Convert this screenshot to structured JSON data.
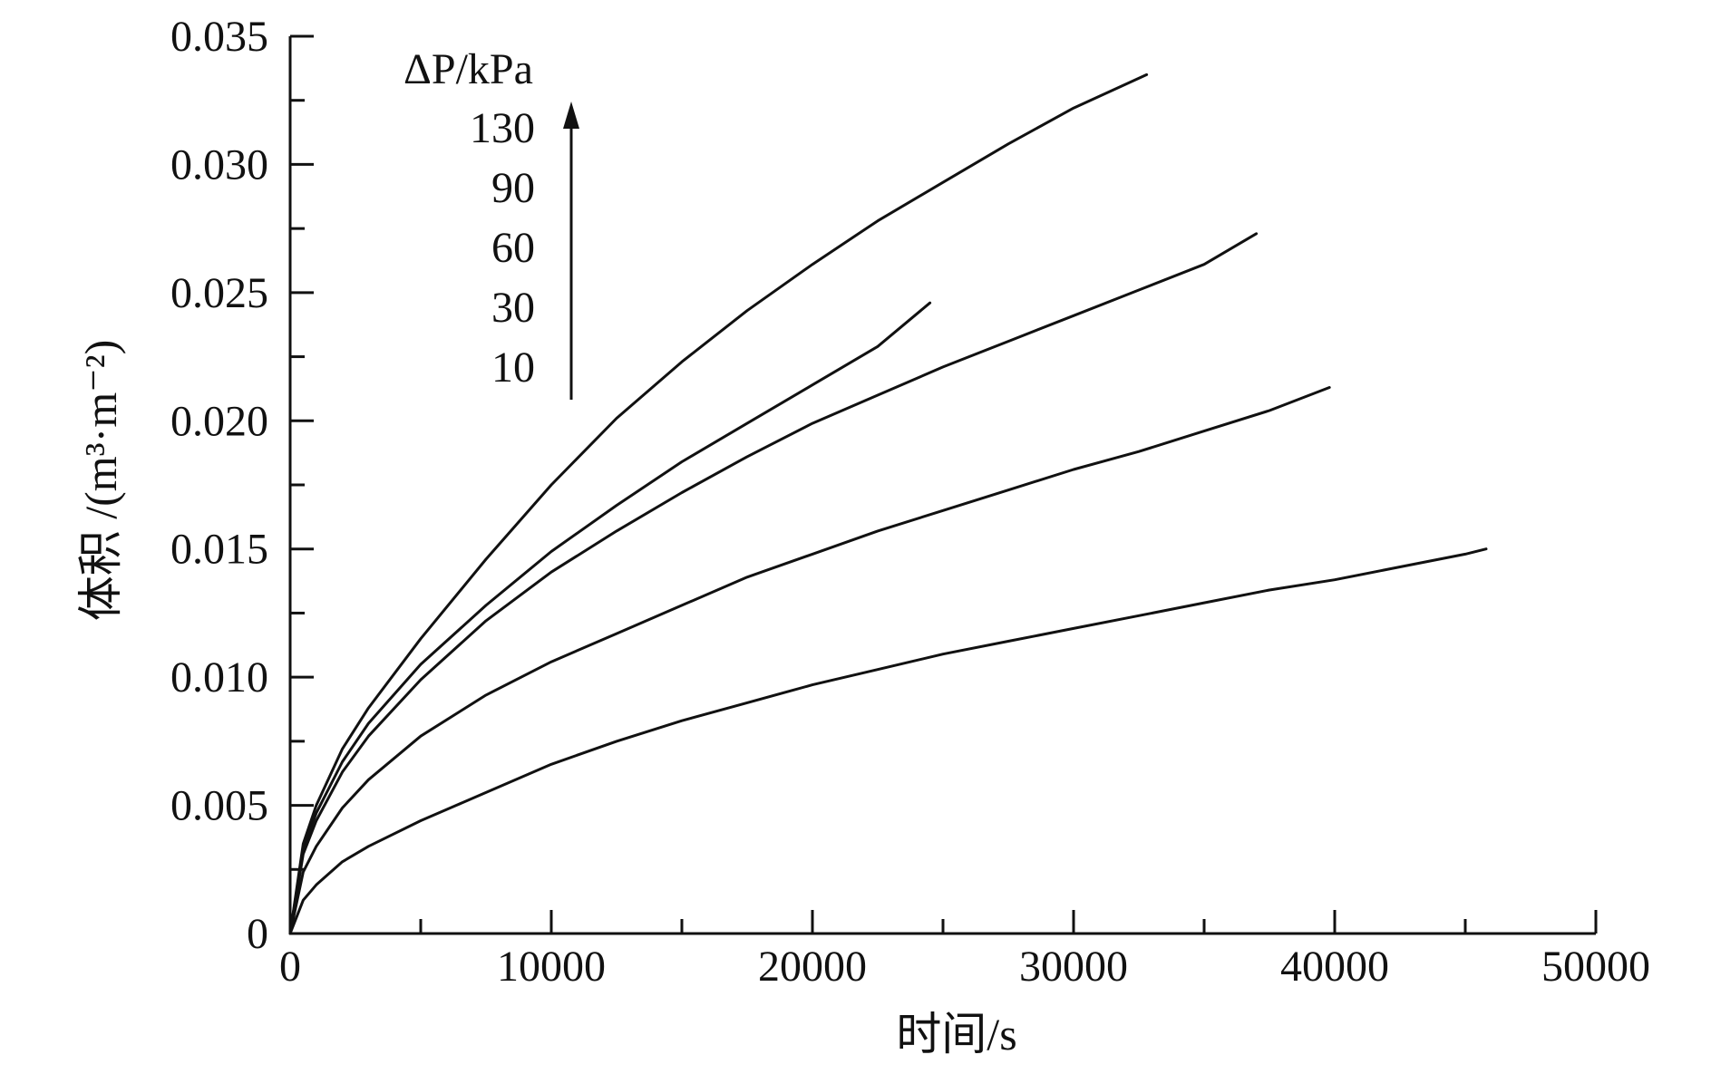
{
  "colors": {
    "background": "#ffffff",
    "ink": "#111111"
  },
  "chart_data": {
    "type": "line",
    "title": "",
    "xlabel": "时间/s",
    "ylabel": "体积 /(m³·m⁻²)",
    "xlim": [
      0,
      50000
    ],
    "ylim": [
      0,
      0.035
    ],
    "x_ticks": [
      0,
      10000,
      20000,
      30000,
      40000,
      50000
    ],
    "x_tick_labels": [
      "0",
      "10000",
      "20000",
      "30000",
      "40000",
      "50000"
    ],
    "y_ticks": [
      0,
      0.005,
      0.01,
      0.015,
      0.02,
      0.025,
      0.03,
      0.035
    ],
    "y_tick_labels": [
      "0",
      "0.005",
      "0.010",
      "0.015",
      "0.020",
      "0.025",
      "0.030",
      "0.035"
    ],
    "grid": false,
    "legend": {
      "title": "ΔP/kPa",
      "entries": [
        "130",
        "90",
        "60",
        "30",
        "10"
      ],
      "placement": "top-left",
      "arrow_direction": "up"
    },
    "series": [
      {
        "name": "10",
        "x": [
          0,
          500,
          1000,
          2000,
          3000,
          5000,
          7500,
          10000,
          12500,
          15000,
          17500,
          20000,
          22500,
          25000,
          27500,
          30000,
          32500,
          35000,
          37500,
          40000,
          42500,
          45000,
          45800
        ],
        "y": [
          0,
          0.0013,
          0.0019,
          0.0028,
          0.0034,
          0.0044,
          0.0055,
          0.0066,
          0.0075,
          0.0083,
          0.009,
          0.0097,
          0.0103,
          0.0109,
          0.0114,
          0.0119,
          0.0124,
          0.0129,
          0.0134,
          0.0138,
          0.0143,
          0.0148,
          0.015
        ]
      },
      {
        "name": "30",
        "x": [
          0,
          500,
          1000,
          2000,
          3000,
          5000,
          7500,
          10000,
          12500,
          15000,
          17500,
          20000,
          22500,
          25000,
          27500,
          30000,
          32500,
          35000,
          37500,
          39800
        ],
        "y": [
          0,
          0.0024,
          0.0034,
          0.0049,
          0.006,
          0.0077,
          0.0093,
          0.0106,
          0.0117,
          0.0128,
          0.0139,
          0.0148,
          0.0157,
          0.0165,
          0.0173,
          0.0181,
          0.0188,
          0.0196,
          0.0204,
          0.0213
        ]
      },
      {
        "name": "60",
        "x": [
          0,
          500,
          1000,
          2000,
          3000,
          5000,
          7500,
          10000,
          12500,
          15000,
          17500,
          20000,
          22500,
          25000,
          27500,
          30000,
          32500,
          35000,
          37000
        ],
        "y": [
          0,
          0.0031,
          0.0044,
          0.0063,
          0.0077,
          0.0099,
          0.0122,
          0.0141,
          0.0157,
          0.0172,
          0.0186,
          0.0199,
          0.021,
          0.0221,
          0.0231,
          0.0241,
          0.0251,
          0.0261,
          0.0273
        ]
      },
      {
        "name": "90",
        "x": [
          0,
          500,
          1000,
          2000,
          3000,
          5000,
          7500,
          10000,
          12500,
          15000,
          17500,
          20000,
          22500,
          24500
        ],
        "y": [
          0,
          0.0033,
          0.0047,
          0.0067,
          0.0082,
          0.0105,
          0.0128,
          0.0149,
          0.0167,
          0.0184,
          0.0199,
          0.0214,
          0.0229,
          0.0246
        ]
      },
      {
        "name": "130",
        "x": [
          0,
          500,
          1000,
          2000,
          3000,
          5000,
          7500,
          10000,
          12500,
          15000,
          17500,
          20000,
          22500,
          25000,
          27500,
          30000,
          32800
        ],
        "y": [
          0,
          0.0035,
          0.005,
          0.0072,
          0.0088,
          0.0115,
          0.0146,
          0.0175,
          0.0201,
          0.0223,
          0.0243,
          0.0261,
          0.0278,
          0.0293,
          0.0308,
          0.0322,
          0.0335
        ]
      }
    ]
  }
}
